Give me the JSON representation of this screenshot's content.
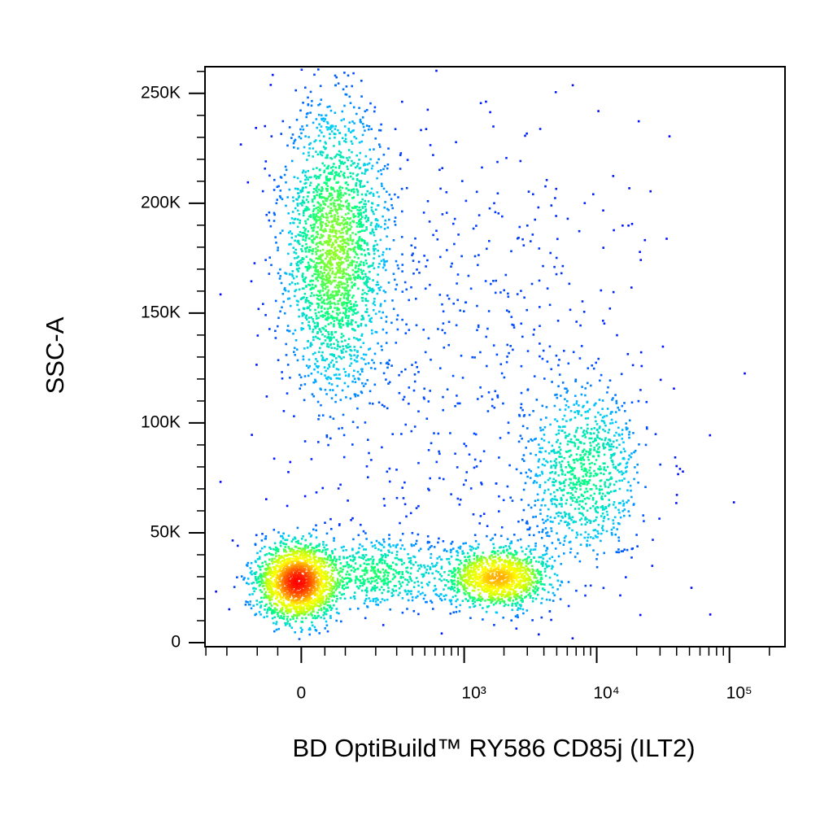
{
  "chart_data": {
    "type": "density-scatter",
    "x_label": "BD OptiBuild™ RY586 CD85j (ILT2)",
    "y_label": "SSC-A",
    "xscale": "biexponential",
    "linear_width": 119,
    "xlim": [
      -305,
      262144
    ],
    "ylim": [
      -1850,
      262144
    ],
    "xticks": [
      {
        "value": 0,
        "label": "0"
      },
      {
        "value": 1000,
        "label": "10³"
      },
      {
        "value": 10000,
        "label": "10⁴"
      },
      {
        "value": 100000,
        "label": "10⁵"
      }
    ],
    "xminorticks": [
      -300,
      -200,
      -100,
      -50,
      50,
      100,
      200,
      300,
      400,
      500,
      600,
      700,
      800,
      900,
      2000,
      3000,
      4000,
      5000,
      6000,
      7000,
      8000,
      9000,
      20000,
      30000,
      40000,
      50000,
      60000,
      70000,
      80000,
      90000,
      200000
    ],
    "yticks": [
      {
        "value": 0,
        "label": "0"
      },
      {
        "value": 50000,
        "label": "50K"
      },
      {
        "value": 100000,
        "label": "100K"
      },
      {
        "value": 150000,
        "label": "150K"
      },
      {
        "value": 200000,
        "label": "200K"
      },
      {
        "value": 250000,
        "label": "250K"
      }
    ],
    "yminorticks": [
      10000,
      20000,
      30000,
      40000,
      60000,
      70000,
      80000,
      90000,
      110000,
      120000,
      130000,
      140000,
      160000,
      170000,
      180000,
      190000,
      210000,
      220000,
      230000,
      240000,
      260000
    ],
    "colormap": [
      "#0000ff",
      "#00c8ff",
      "#00ff80",
      "#c8ff00",
      "#ffff00",
      "#ff8000",
      "#ff0000"
    ],
    "populations": [
      {
        "x": -10,
        "y": 28000,
        "x_spread": 0.35,
        "y_spread": 9000,
        "events": 1800
      },
      {
        "x": 70,
        "y": 180000,
        "x_spread": 0.45,
        "y_spread": 32000,
        "events": 2200
      },
      {
        "x": 1760,
        "y": 30000,
        "x_spread": 0.45,
        "y_spread": 7000,
        "events": 1200
      },
      {
        "x": 200,
        "y": 32000,
        "x_spread": 0.6,
        "y_spread": 8000,
        "events": 500
      },
      {
        "x": 8000,
        "y": 78000,
        "x_spread": 0.5,
        "y_spread": 20000,
        "events": 900
      },
      {
        "x": 1000,
        "y": 130000,
        "x_spread": 1.5,
        "y_spread": 60000,
        "events": 600
      }
    ]
  }
}
